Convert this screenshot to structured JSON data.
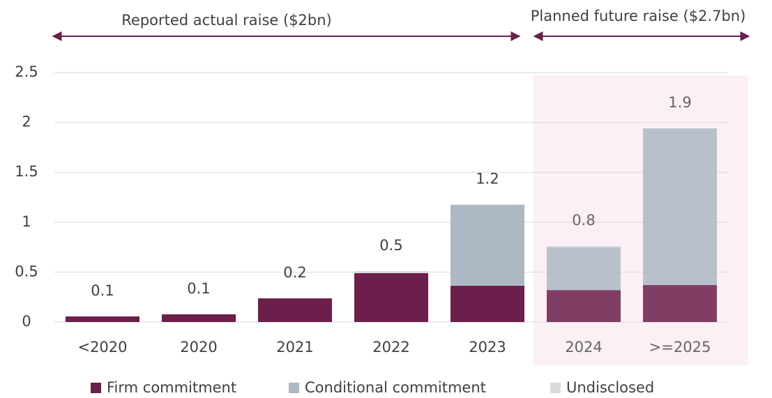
{
  "chart_data": {
    "type": "stacked_bar",
    "annotations": [
      "Reported actual raise ($2bn)",
      "Planned future raise ($2.7bn)"
    ],
    "categories": [
      "<2020",
      "2020",
      "2021",
      "2022",
      "2023",
      "2024",
      ">=2025"
    ],
    "total_labels": [
      "0.1",
      "0.1",
      "0.2",
      "0.5",
      "1.2",
      "0.8",
      "1.9"
    ],
    "series": [
      {
        "name": "Firm commitment",
        "color": "#6b1f4a",
        "values": [
          0.056,
          0.077,
          0.237,
          0.49,
          0.363,
          0.32,
          0.37
        ]
      },
      {
        "name": "Conditional commitment",
        "color": "#acb9c3",
        "values": [
          0,
          0,
          0,
          0,
          0.81,
          0.43,
          1.57
        ]
      },
      {
        "name": "Undisclosed",
        "color": "#d9d9d9",
        "values": [
          0,
          0,
          0,
          0.02,
          0.005,
          0.01,
          0
        ]
      }
    ],
    "ylim": [
      0,
      2.5
    ],
    "yticks": [
      0,
      0.5,
      1,
      1.5,
      2,
      2.5
    ],
    "grid": true
  }
}
